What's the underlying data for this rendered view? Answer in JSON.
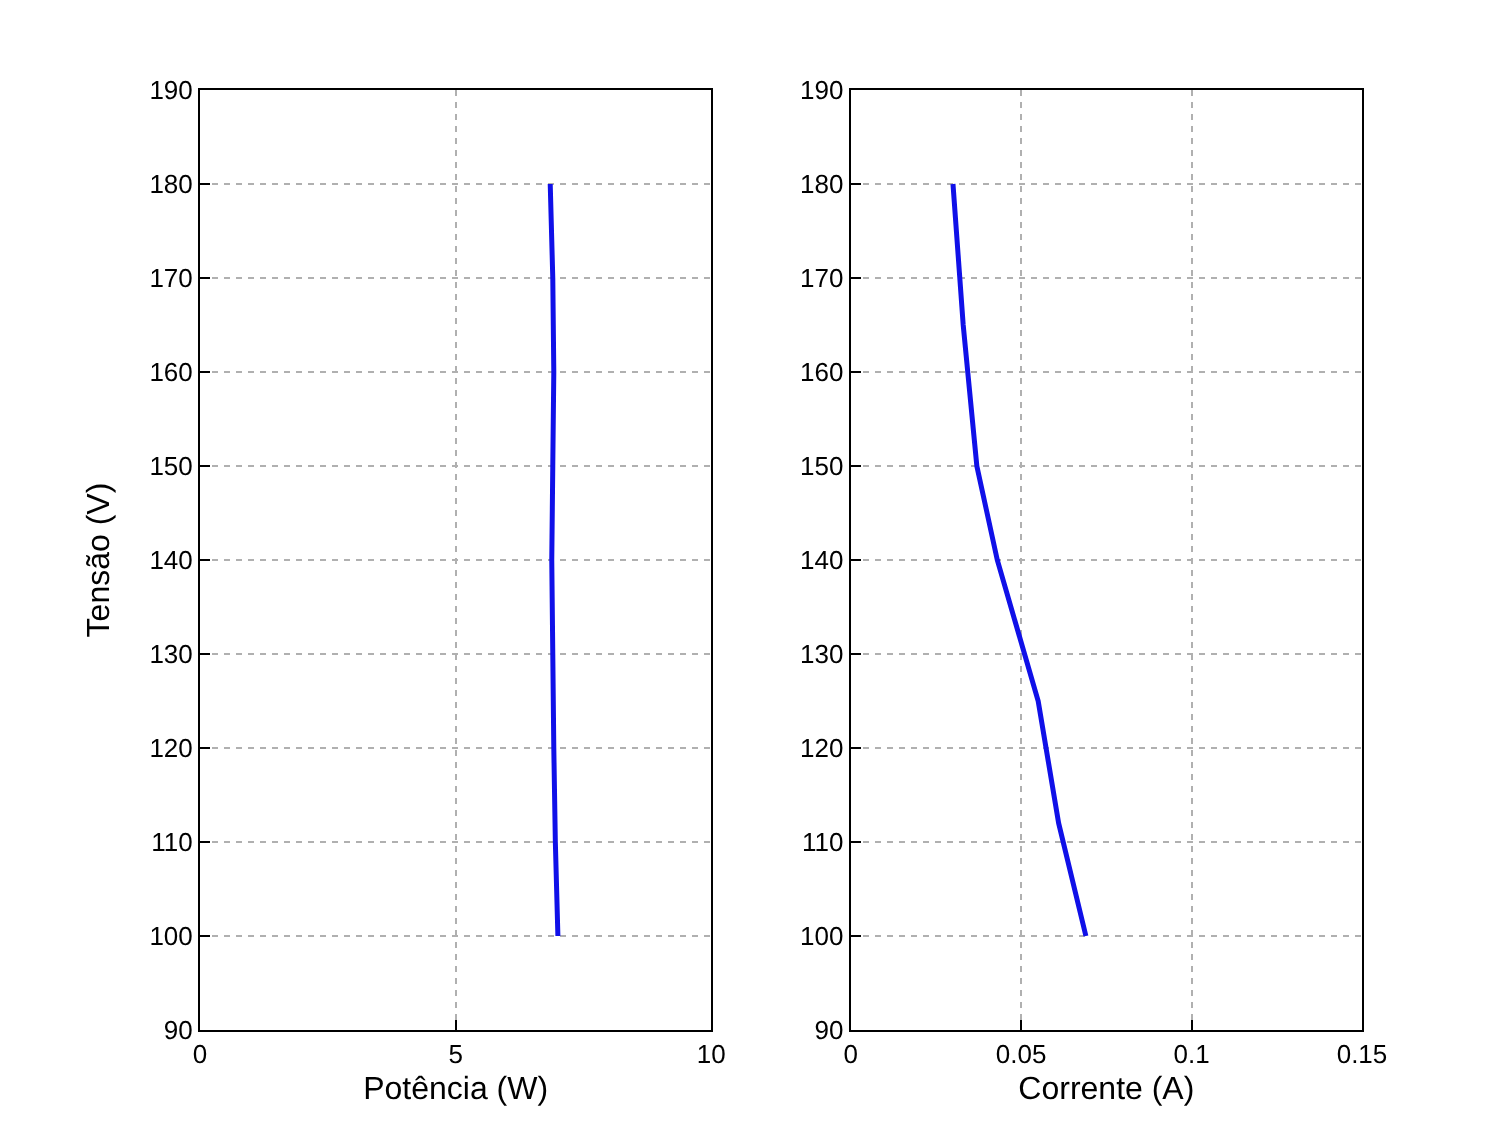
{
  "chart_data": [
    {
      "type": "line",
      "xlabel": "Potência (W)",
      "ylabel": "Tensão (V)",
      "xlim": [
        0,
        10
      ],
      "xticks": [
        0,
        5,
        10
      ],
      "ylim": [
        90,
        190
      ],
      "yticks": [
        90,
        100,
        110,
        120,
        130,
        140,
        150,
        160,
        170,
        180,
        190
      ],
      "grid": true,
      "marker": "none",
      "line_style": "solid",
      "series": [
        {
          "color": "#1010e8",
          "x": [
            7.0,
            6.95,
            6.92,
            6.9,
            6.88,
            6.9,
            6.92,
            6.9,
            6.85
          ],
          "values": [
            100,
            110,
            120,
            130,
            140,
            150,
            160,
            170,
            180
          ]
        }
      ]
    },
    {
      "type": "line",
      "xlabel": "Corrente (A)",
      "xlim": [
        0,
        0.15
      ],
      "xticks": [
        0,
        0.05,
        0.1,
        0.15
      ],
      "ylim": [
        90,
        190
      ],
      "yticks": [
        90,
        100,
        110,
        120,
        130,
        140,
        150,
        160,
        170,
        180,
        190
      ],
      "grid": true,
      "marker": "none",
      "line_style": "solid",
      "series": [
        {
          "color": "#1010e8",
          "x": [
            0.069,
            0.061,
            0.055,
            0.043,
            0.037,
            0.033,
            0.03
          ],
          "values": [
            100,
            112,
            125,
            140,
            150,
            165,
            180
          ]
        }
      ]
    }
  ]
}
